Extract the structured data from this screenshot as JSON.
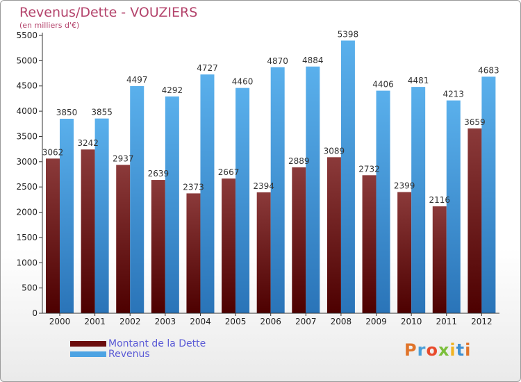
{
  "title": "Revenus/Dette - VOUZIERS",
  "subtitle": "(en milliers d'€)",
  "logo": {
    "text": "Proxiti",
    "letters": [
      {
        "ch": "P",
        "color": "#e0742a"
      },
      {
        "ch": "r",
        "color": "#4a9fd8"
      },
      {
        "ch": "o",
        "color": "#e84a2b"
      },
      {
        "ch": "x",
        "color": "#7bbf3a"
      },
      {
        "ch": "i",
        "color": "#f0b322"
      },
      {
        "ch": "t",
        "color": "#3c8fd2"
      },
      {
        "ch": "i",
        "color": "#e0742a"
      }
    ]
  },
  "legend": {
    "items": [
      {
        "label": "Montant de la Dette",
        "color": "#6b0d0d"
      },
      {
        "label": "Revenus",
        "color": "#4da3e3"
      }
    ]
  },
  "colors": {
    "dette_top": "#8b3a3a",
    "dette_bottom": "#4d0000",
    "revenus_top": "#5ab0ec",
    "revenus_bottom": "#2a74b8",
    "title": "#b4446c",
    "legend_text": "#5a5ad6"
  },
  "chart_data": {
    "type": "bar",
    "title": "Revenus/Dette - VOUZIERS",
    "subtitle": "(en milliers d'€)",
    "xlabel": "",
    "ylabel": "",
    "ylim": [
      0,
      5500
    ],
    "yticks": [
      0,
      500,
      1000,
      1500,
      2000,
      2500,
      3000,
      3500,
      4000,
      4500,
      5000,
      5500
    ],
    "grid": false,
    "legend_position": "bottom-left",
    "categories": [
      "2000",
      "2001",
      "2002",
      "2003",
      "2004",
      "2005",
      "2006",
      "2007",
      "2008",
      "2009",
      "2010",
      "2011",
      "2012"
    ],
    "series": [
      {
        "name": "Montant de la Dette",
        "values": [
          3062,
          3242,
          2937,
          2639,
          2373,
          2667,
          2394,
          2889,
          3089,
          2732,
          2399,
          2116,
          3659
        ]
      },
      {
        "name": "Revenus",
        "values": [
          3850,
          3855,
          4497,
          4292,
          4727,
          4460,
          4870,
          4884,
          5398,
          4406,
          4481,
          4213,
          4683
        ]
      }
    ]
  }
}
